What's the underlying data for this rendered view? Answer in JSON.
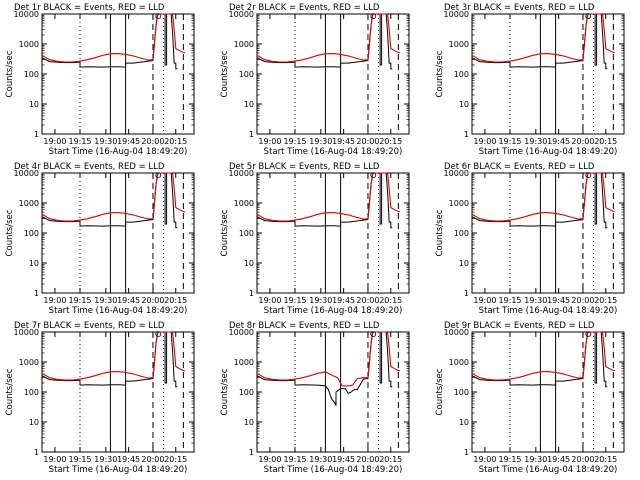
{
  "chart_data": [
    {
      "type": "line",
      "title": "Det 1r BLACK = Events, RED = LLD",
      "xlabel": "Start Time (16-Aug-04 18:49:20)",
      "ylabel": "Counts/sec",
      "yscale": "log",
      "ylim": [
        1,
        10000
      ],
      "xlim": [
        0,
        100
      ],
      "ytick_labels": [
        "1",
        "10",
        "100",
        "1000",
        "10000"
      ],
      "xtick_labels": [
        "19:00",
        "19:15",
        "19:30",
        "19:45",
        "20:00",
        "20:15"
      ],
      "variant": "a"
    },
    {
      "type": "line",
      "title": "Det 2r BLACK = Events, RED = LLD",
      "xlabel": "Start Time (16-Aug-04 18:49:20)",
      "ylabel": "Counts/sec",
      "yscale": "log",
      "ylim": [
        1,
        10000
      ],
      "xlim": [
        0,
        100
      ],
      "ytick_labels": [
        "1",
        "10",
        "100",
        "1000",
        "10000"
      ],
      "xtick_labels": [
        "19:00",
        "19:15",
        "19:30",
        "19:45",
        "20:00",
        "20:15"
      ],
      "variant": "a"
    },
    {
      "type": "line",
      "title": "Det 3r BLACK = Events, RED = LLD",
      "xlabel": "Start Time (16-Aug-04 18:49:20)",
      "ylabel": "Counts/sec",
      "yscale": "log",
      "ylim": [
        1,
        10000
      ],
      "xlim": [
        0,
        100
      ],
      "ytick_labels": [
        "1",
        "10",
        "100",
        "1000",
        "10000"
      ],
      "xtick_labels": [
        "19:00",
        "19:15",
        "19:30",
        "19:45",
        "20:00",
        "20:15"
      ],
      "variant": "a"
    },
    {
      "type": "line",
      "title": "Det 4r BLACK = Events, RED = LLD",
      "xlabel": "Start Time (16-Aug-04 18:49:20)",
      "ylabel": "Counts/sec",
      "yscale": "log",
      "ylim": [
        1,
        10000
      ],
      "xlim": [
        0,
        100
      ],
      "ytick_labels": [
        "1",
        "10",
        "100",
        "1000",
        "10000"
      ],
      "xtick_labels": [
        "19:00",
        "19:15",
        "19:30",
        "19:45",
        "20:00",
        "20:15"
      ],
      "variant": "a"
    },
    {
      "type": "line",
      "title": "Det 5r BLACK = Events, RED = LLD",
      "xlabel": "Start Time (16-Aug-04 18:49:20)",
      "ylabel": "Counts/sec",
      "yscale": "log",
      "ylim": [
        1,
        10000
      ],
      "xlim": [
        0,
        100
      ],
      "ytick_labels": [
        "1",
        "10",
        "100",
        "1000",
        "10000"
      ],
      "xtick_labels": [
        "19:00",
        "19:15",
        "19:30",
        "19:45",
        "20:00",
        "20:15"
      ],
      "variant": "a"
    },
    {
      "type": "line",
      "title": "Det 6r BLACK = Events, RED = LLD",
      "xlabel": "Start Time (16-Aug-04 18:49:20)",
      "ylabel": "Counts/sec",
      "yscale": "log",
      "ylim": [
        1,
        10000
      ],
      "xlim": [
        0,
        100
      ],
      "ytick_labels": [
        "1",
        "10",
        "100",
        "1000",
        "10000"
      ],
      "xtick_labels": [
        "19:00",
        "19:15",
        "19:30",
        "19:45",
        "20:00",
        "20:15"
      ],
      "variant": "a"
    },
    {
      "type": "line",
      "title": "Det 7r BLACK = Events, RED = LLD",
      "xlabel": "Start Time (16-Aug-04 18:49:20)",
      "ylabel": "Counts/sec",
      "yscale": "log",
      "ylim": [
        1,
        10000
      ],
      "xlim": [
        0,
        100
      ],
      "ytick_labels": [
        "1",
        "10",
        "100",
        "1000",
        "10000"
      ],
      "xtick_labels": [
        "19:00",
        "19:15",
        "19:30",
        "19:45",
        "20:00",
        "20:15"
      ],
      "variant": "a"
    },
    {
      "type": "line",
      "title": "Det 8r BLACK = Events, RED = LLD",
      "xlabel": "Start Time (16-Aug-04 18:49:20)",
      "ylabel": "Counts/sec",
      "yscale": "log",
      "ylim": [
        1,
        10000
      ],
      "xlim": [
        0,
        100
      ],
      "ytick_labels": [
        "1",
        "10",
        "100",
        "1000",
        "10000"
      ],
      "xtick_labels": [
        "19:00",
        "19:15",
        "19:30",
        "19:45",
        "20:00",
        "20:15"
      ],
      "variant": "b"
    },
    {
      "type": "line",
      "title": "Det 9r BLACK = Events, RED = LLD",
      "xlabel": "Start Time (16-Aug-04 18:49:20)",
      "ylabel": "Counts/sec",
      "yscale": "log",
      "ylim": [
        1,
        10000
      ],
      "xlim": [
        0,
        100
      ],
      "ytick_labels": [
        "1",
        "10",
        "100",
        "1000",
        "10000"
      ],
      "xtick_labels": [
        "19:00",
        "19:15",
        "19:30",
        "19:45",
        "20:00",
        "20:15"
      ],
      "variant": "a"
    }
  ],
  "series_templates": {
    "a": {
      "red_lld": [
        [
          0,
          420
        ],
        [
          5,
          300
        ],
        [
          10,
          265
        ],
        [
          15,
          250
        ],
        [
          20,
          252
        ],
        [
          25,
          270
        ],
        [
          30,
          300
        ],
        [
          35,
          350
        ],
        [
          40,
          420
        ],
        [
          45,
          470
        ],
        [
          50,
          480
        ],
        [
          55,
          450
        ],
        [
          60,
          400
        ],
        [
          65,
          340
        ],
        [
          70,
          290
        ],
        [
          73,
          300
        ],
        [
          75,
          4000
        ],
        [
          76,
          9000
        ],
        [
          77,
          10000
        ],
        [
          82,
          10000
        ],
        [
          85,
          10000
        ],
        [
          86,
          9000
        ],
        [
          87,
          3000
        ],
        [
          88,
          700
        ],
        [
          92,
          550
        ],
        [
          94,
          500
        ]
      ],
      "black_events": [
        [
          0,
          350
        ],
        [
          5,
          260
        ],
        [
          10,
          245
        ],
        [
          15,
          240
        ],
        [
          20,
          240
        ],
        [
          25,
          250
        ],
        [
          25,
          170
        ],
        [
          30,
          175
        ],
        [
          40,
          170
        ],
        [
          45,
          175
        ],
        [
          50,
          175
        ],
        [
          55,
          170
        ],
        [
          55,
          230
        ],
        [
          60,
          230
        ],
        [
          65,
          250
        ],
        [
          70,
          270
        ],
        [
          73,
          280
        ],
        [
          75,
          4000
        ],
        [
          76,
          9000
        ],
        [
          77,
          10000
        ],
        [
          80,
          10000
        ],
        [
          81,
          10000
        ],
        [
          81,
          200
        ],
        [
          82,
          200
        ],
        [
          82,
          10000
        ],
        [
          85,
          10000
        ],
        [
          86,
          2000
        ],
        [
          87,
          230
        ],
        [
          88,
          230
        ],
        [
          88,
          150
        ],
        [
          89,
          150
        ]
      ]
    },
    "b": {
      "red_lld": [
        [
          0,
          420
        ],
        [
          5,
          300
        ],
        [
          10,
          265
        ],
        [
          15,
          250
        ],
        [
          20,
          252
        ],
        [
          25,
          270
        ],
        [
          30,
          300
        ],
        [
          35,
          350
        ],
        [
          40,
          420
        ],
        [
          45,
          470
        ],
        [
          50,
          350
        ],
        [
          53,
          300
        ],
        [
          56,
          160
        ],
        [
          60,
          160
        ],
        [
          63,
          170
        ],
        [
          66,
          280
        ],
        [
          70,
          300
        ],
        [
          73,
          300
        ],
        [
          75,
          4000
        ],
        [
          76,
          9000
        ],
        [
          77,
          10000
        ],
        [
          82,
          10000
        ],
        [
          85,
          10000
        ],
        [
          86,
          9000
        ],
        [
          87,
          3000
        ],
        [
          88,
          700
        ],
        [
          92,
          550
        ],
        [
          94,
          500
        ]
      ],
      "black_events": [
        [
          0,
          350
        ],
        [
          5,
          260
        ],
        [
          10,
          245
        ],
        [
          15,
          240
        ],
        [
          20,
          240
        ],
        [
          25,
          250
        ],
        [
          25,
          170
        ],
        [
          30,
          175
        ],
        [
          40,
          170
        ],
        [
          45,
          160
        ],
        [
          47,
          120
        ],
        [
          49,
          60
        ],
        [
          51,
          45
        ],
        [
          52,
          35
        ],
        [
          52,
          100
        ],
        [
          55,
          130
        ],
        [
          58,
          130
        ],
        [
          60,
          90
        ],
        [
          62,
          100
        ],
        [
          64,
          120
        ],
        [
          66,
          120
        ],
        [
          70,
          270
        ],
        [
          73,
          280
        ],
        [
          75,
          4000
        ],
        [
          76,
          9000
        ],
        [
          77,
          10000
        ],
        [
          80,
          10000
        ],
        [
          81,
          10000
        ],
        [
          81,
          200
        ],
        [
          82,
          200
        ],
        [
          82,
          10000
        ],
        [
          85,
          10000
        ],
        [
          86,
          2000
        ],
        [
          87,
          230
        ],
        [
          88,
          230
        ],
        [
          88,
          150
        ],
        [
          89,
          150
        ]
      ]
    }
  },
  "vertical_markers": [
    {
      "x": 25,
      "style": "dotted"
    },
    {
      "x": 45,
      "style": "solid"
    },
    {
      "x": 55,
      "style": "solid"
    },
    {
      "x": 73,
      "style": "dashed"
    },
    {
      "x": 80,
      "style": "dotted"
    },
    {
      "x": 93,
      "style": "dashed"
    }
  ],
  "colors": {
    "red": "#e00000",
    "black": "#000000"
  }
}
